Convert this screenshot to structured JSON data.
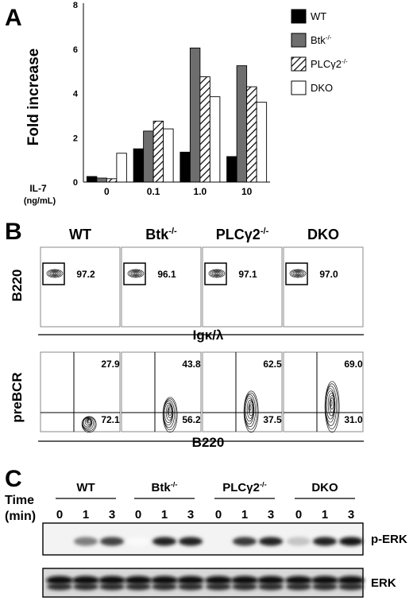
{
  "panels": {
    "a": "A",
    "b": "B",
    "c": "C"
  },
  "chart_data": {
    "type": "bar",
    "ylabel": "Fold increase",
    "xlabel": "IL-7",
    "xlabel_unit": "(ng/mL)",
    "ylim": [
      0,
      8
    ],
    "yticks": [
      "0",
      "2",
      "4",
      "6",
      "8"
    ],
    "categories": [
      "0",
      "0.1",
      "1.0",
      "10"
    ],
    "series": [
      {
        "name": "WT",
        "color": "#000000",
        "pattern": "solid",
        "values": [
          0.25,
          1.5,
          1.35,
          1.15
        ]
      },
      {
        "name": "Btk",
        "superscript": "-/-",
        "color": "#6e6e6e",
        "pattern": "solid",
        "values": [
          0.18,
          2.3,
          6.05,
          5.25
        ]
      },
      {
        "name": "PLCγ2",
        "superscript": "-/-",
        "color": "#ffffff",
        "pattern": "diagonal-hatch",
        "values": [
          0.15,
          2.75,
          4.75,
          4.3
        ]
      },
      {
        "name": "DKO",
        "color": "#ffffff",
        "pattern": "open",
        "values": [
          1.3,
          2.4,
          3.85,
          3.6
        ]
      }
    ]
  },
  "flow": {
    "genotypes": [
      {
        "name": "WT",
        "sup": ""
      },
      {
        "name": "Btk",
        "sup": "-/-"
      },
      {
        "name": "PLCγ2",
        "sup": "-/-"
      },
      {
        "name": "DKO",
        "sup": ""
      }
    ],
    "row1": {
      "ylabel": "B220",
      "xlabel": "Igκ/λ",
      "values": [
        "97.2",
        "96.1",
        "97.1",
        "97.0"
      ]
    },
    "row2": {
      "ylabel": "preBCR",
      "xlabel": "B220",
      "upper": [
        "27.9",
        "43.8",
        "62.5",
        "69.0"
      ],
      "lower": [
        "72.1",
        "56.2",
        "37.5",
        "31.0"
      ]
    }
  },
  "blot": {
    "time_label": "Time",
    "time_unit": "(min)",
    "groups": [
      {
        "name": "WT",
        "sup": ""
      },
      {
        "name": "Btk",
        "sup": "-/-"
      },
      {
        "name": "PLCγ2",
        "sup": "-/-"
      },
      {
        "name": "DKO",
        "sup": ""
      }
    ],
    "times": [
      "0",
      "1",
      "3"
    ],
    "band1_label": "p-ERK",
    "band2_label": "ERK",
    "perk_intensity": [
      0.0,
      0.55,
      0.8,
      0.02,
      0.95,
      0.95,
      0.05,
      0.85,
      0.95,
      0.25,
      0.95,
      1.0
    ]
  }
}
